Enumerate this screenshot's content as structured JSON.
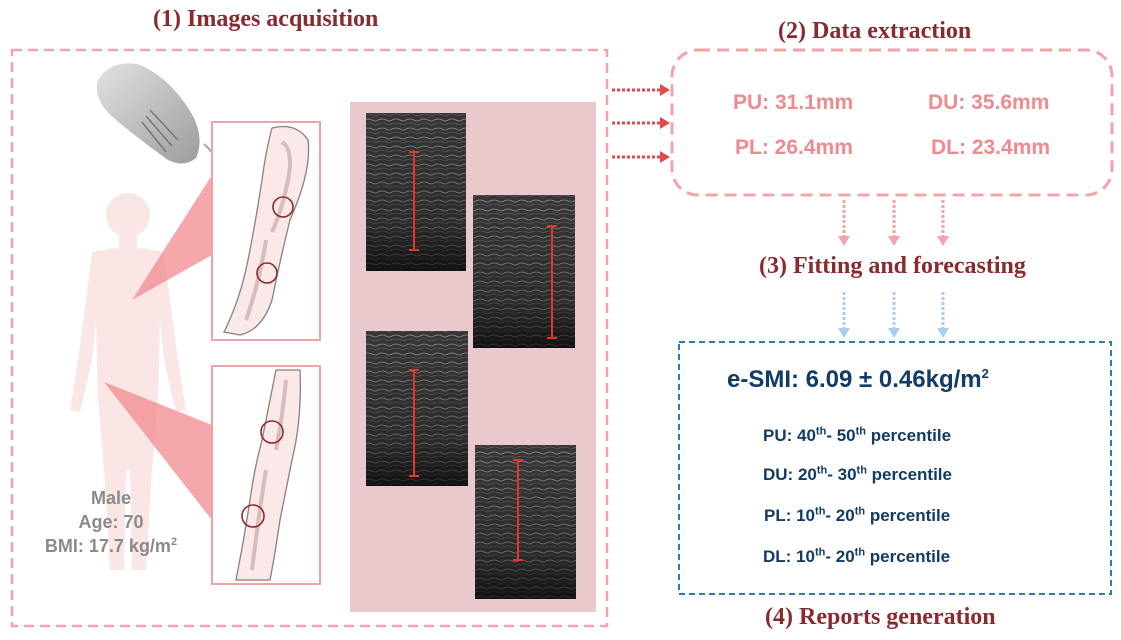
{
  "steps": {
    "acquisition": "(1) Images acquisition",
    "extraction": "(2) Data extraction",
    "fitting": "(3) Fitting and forecasting",
    "reports": "(4) Reports generation"
  },
  "patient": {
    "sex": "Male",
    "age": "Age: 70",
    "bmi": "BMI: 17.7 kg/m",
    "bmi_exp": "2"
  },
  "measurements": {
    "pu": "PU: 31.1mm",
    "du": "DU: 35.6mm",
    "pl": "PL: 26.4mm",
    "dl": "DL: 23.4mm"
  },
  "report": {
    "esmi": "e-SMI: 6.09 ± 0.46kg/m",
    "esmi_exp": "2",
    "percentiles": [
      {
        "site": "PU: 40",
        "low_sup": "th",
        "mid": "- 50",
        "high_sup": "th",
        "suffix": " percentile"
      },
      {
        "site": "DU: 20",
        "low_sup": "th",
        "mid": "- 30",
        "high_sup": "th",
        "suffix": " percentile"
      },
      {
        "site": "PL: 10",
        "low_sup": "th",
        "mid": "- 20",
        "high_sup": "th",
        "suffix": " percentile"
      },
      {
        "site": "DL: 10",
        "low_sup": "th",
        "mid": "- 20",
        "high_sup": "th",
        "suffix": " percentile"
      }
    ]
  },
  "colors": {
    "title": "#8b2a2e",
    "dashed_pink": "#f4a3a7",
    "measure_text": "#ef8a8e",
    "report_text": "#123b66",
    "report_border": "#2b7bc0",
    "arrow_red": "#e04a4f",
    "arrow_blue": "#a9cdf0"
  },
  "icons": {
    "probe": "ultrasound-probe-icon",
    "body": "human-body-icon",
    "arm": "arm-bone-icon",
    "leg": "leg-bone-icon"
  }
}
